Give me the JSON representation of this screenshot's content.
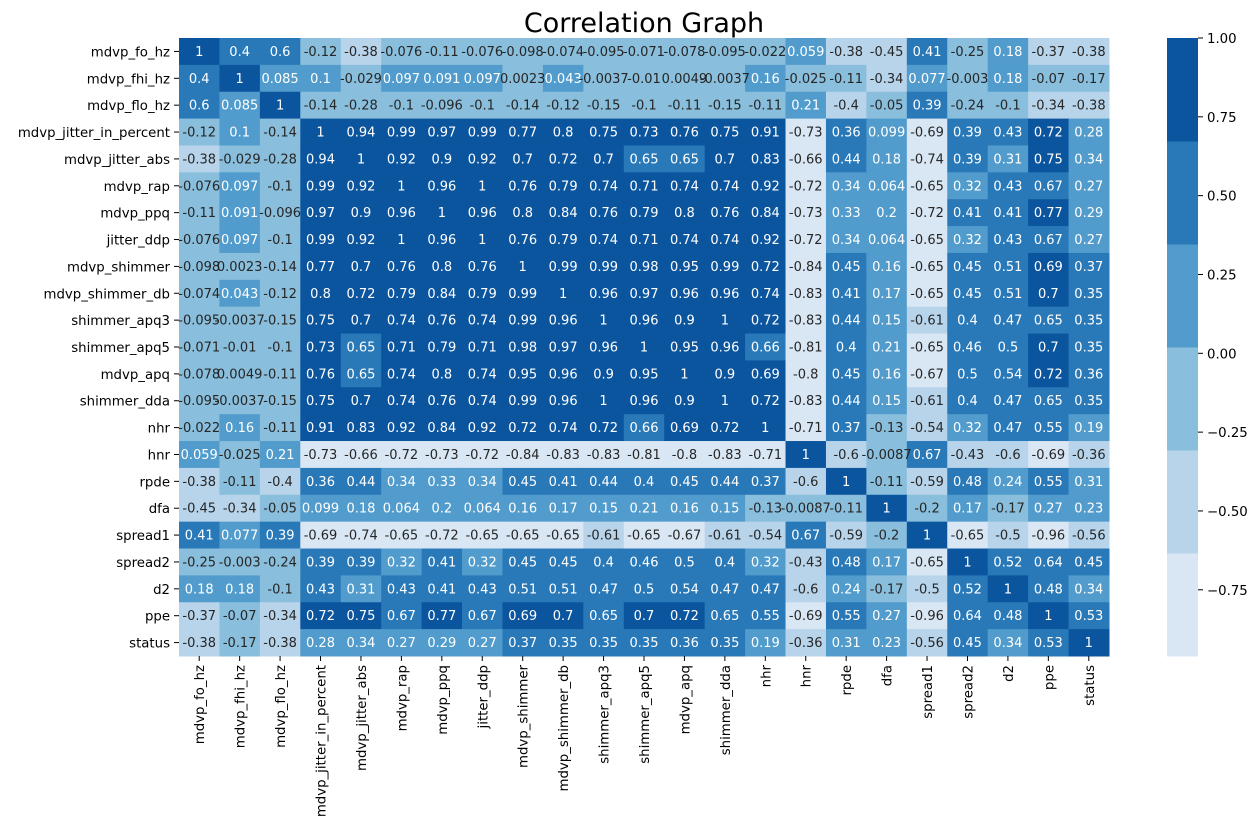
{
  "chart_data": {
    "type": "heatmap",
    "title": "Correlation Graph",
    "labels": [
      "mdvp_fo_hz",
      "mdvp_fhi_hz",
      "mdvp_flo_hz",
      "mdvp_jitter_in_percent",
      "mdvp_jitter_abs",
      "mdvp_rap",
      "mdvp_ppq",
      "jitter_ddp",
      "mdvp_shimmer",
      "mdvp_shimmer_db",
      "shimmer_apq3",
      "shimmer_apq5",
      "mdvp_apq",
      "shimmer_dda",
      "nhr",
      "hnr",
      "rpde",
      "dfa",
      "spread1",
      "spread2",
      "d2",
      "ppe",
      "status"
    ],
    "matrix": [
      [
        1,
        0.4,
        0.6,
        -0.12,
        -0.38,
        -0.076,
        -0.11,
        -0.076,
        -0.098,
        -0.074,
        -0.095,
        -0.071,
        -0.078,
        -0.095,
        -0.022,
        0.059,
        -0.38,
        -0.45,
        0.41,
        -0.25,
        0.18,
        -0.37,
        -0.38
      ],
      [
        0.4,
        1,
        0.085,
        0.1,
        -0.029,
        0.097,
        0.091,
        0.097,
        0.0023,
        0.043,
        -0.0037,
        -0.01,
        0.0049,
        -0.0037,
        0.16,
        -0.025,
        -0.11,
        -0.34,
        0.077,
        -0.003,
        0.18,
        -0.07,
        -0.17
      ],
      [
        0.6,
        0.085,
        1,
        -0.14,
        -0.28,
        -0.1,
        -0.096,
        -0.1,
        -0.14,
        -0.12,
        -0.15,
        -0.1,
        -0.11,
        -0.15,
        -0.11,
        0.21,
        -0.4,
        -0.05,
        0.39,
        -0.24,
        -0.1,
        -0.34,
        -0.38
      ],
      [
        -0.12,
        0.1,
        -0.14,
        1,
        0.94,
        0.99,
        0.97,
        0.99,
        0.77,
        0.8,
        0.75,
        0.73,
        0.76,
        0.75,
        0.91,
        -0.73,
        0.36,
        0.099,
        -0.69,
        0.39,
        0.43,
        0.72,
        0.28
      ],
      [
        -0.38,
        -0.029,
        -0.28,
        0.94,
        1,
        0.92,
        0.9,
        0.92,
        0.7,
        0.72,
        0.7,
        0.65,
        0.65,
        0.7,
        0.83,
        -0.66,
        0.44,
        0.18,
        -0.74,
        0.39,
        0.31,
        0.75,
        0.34
      ],
      [
        -0.076,
        0.097,
        -0.1,
        0.99,
        0.92,
        1,
        0.96,
        1,
        0.76,
        0.79,
        0.74,
        0.71,
        0.74,
        0.74,
        0.92,
        -0.72,
        0.34,
        0.064,
        -0.65,
        0.32,
        0.43,
        0.67,
        0.27
      ],
      [
        -0.11,
        0.091,
        -0.096,
        0.97,
        0.9,
        0.96,
        1,
        0.96,
        0.8,
        0.84,
        0.76,
        0.79,
        0.8,
        0.76,
        0.84,
        -0.73,
        0.33,
        0.2,
        -0.72,
        0.41,
        0.41,
        0.77,
        0.29
      ],
      [
        -0.076,
        0.097,
        -0.1,
        0.99,
        0.92,
        1,
        0.96,
        1,
        0.76,
        0.79,
        0.74,
        0.71,
        0.74,
        0.74,
        0.92,
        -0.72,
        0.34,
        0.064,
        -0.65,
        0.32,
        0.43,
        0.67,
        0.27
      ],
      [
        -0.098,
        0.0023,
        -0.14,
        0.77,
        0.7,
        0.76,
        0.8,
        0.76,
        1,
        0.99,
        0.99,
        0.98,
        0.95,
        0.99,
        0.72,
        -0.84,
        0.45,
        0.16,
        -0.65,
        0.45,
        0.51,
        0.69,
        0.37
      ],
      [
        -0.074,
        0.043,
        -0.12,
        0.8,
        0.72,
        0.79,
        0.84,
        0.79,
        0.99,
        1,
        0.96,
        0.97,
        0.96,
        0.96,
        0.74,
        -0.83,
        0.41,
        0.17,
        -0.65,
        0.45,
        0.51,
        0.7,
        0.35
      ],
      [
        -0.095,
        -0.0037,
        -0.15,
        0.75,
        0.7,
        0.74,
        0.76,
        0.74,
        0.99,
        0.96,
        1,
        0.96,
        0.9,
        1,
        0.72,
        -0.83,
        0.44,
        0.15,
        -0.61,
        0.4,
        0.47,
        0.65,
        0.35
      ],
      [
        -0.071,
        -0.01,
        -0.1,
        0.73,
        0.65,
        0.71,
        0.79,
        0.71,
        0.98,
        0.97,
        0.96,
        1,
        0.95,
        0.96,
        0.66,
        -0.81,
        0.4,
        0.21,
        -0.65,
        0.46,
        0.5,
        0.7,
        0.35
      ],
      [
        -0.078,
        0.0049,
        -0.11,
        0.76,
        0.65,
        0.74,
        0.8,
        0.74,
        0.95,
        0.96,
        0.9,
        0.95,
        1,
        0.9,
        0.69,
        -0.8,
        0.45,
        0.16,
        -0.67,
        0.5,
        0.54,
        0.72,
        0.36
      ],
      [
        -0.095,
        -0.0037,
        -0.15,
        0.75,
        0.7,
        0.74,
        0.76,
        0.74,
        0.99,
        0.96,
        1,
        0.96,
        0.9,
        1,
        0.72,
        -0.83,
        0.44,
        0.15,
        -0.61,
        0.4,
        0.47,
        0.65,
        0.35
      ],
      [
        -0.022,
        0.16,
        -0.11,
        0.91,
        0.83,
        0.92,
        0.84,
        0.92,
        0.72,
        0.74,
        0.72,
        0.66,
        0.69,
        0.72,
        1,
        -0.71,
        0.37,
        -0.13,
        -0.54,
        0.32,
        0.47,
        0.55,
        0.19
      ],
      [
        0.059,
        -0.025,
        0.21,
        -0.73,
        -0.66,
        -0.72,
        -0.73,
        -0.72,
        -0.84,
        -0.83,
        -0.83,
        -0.81,
        -0.8,
        -0.83,
        -0.71,
        1,
        -0.6,
        -0.0087,
        0.67,
        -0.43,
        -0.6,
        -0.69,
        -0.36
      ],
      [
        -0.38,
        -0.11,
        -0.4,
        0.36,
        0.44,
        0.34,
        0.33,
        0.34,
        0.45,
        0.41,
        0.44,
        0.4,
        0.45,
        0.44,
        0.37,
        -0.6,
        1,
        -0.11,
        -0.59,
        0.48,
        0.24,
        0.55,
        0.31
      ],
      [
        -0.45,
        -0.34,
        -0.05,
        0.099,
        0.18,
        0.064,
        0.2,
        0.064,
        0.16,
        0.17,
        0.15,
        0.21,
        0.16,
        0.15,
        -0.13,
        -0.0087,
        -0.11,
        1,
        -0.2,
        0.17,
        -0.17,
        0.27,
        0.23
      ],
      [
        0.41,
        0.077,
        0.39,
        -0.69,
        -0.74,
        -0.65,
        -0.72,
        -0.65,
        -0.65,
        -0.65,
        -0.61,
        -0.65,
        -0.67,
        -0.61,
        -0.54,
        0.67,
        -0.59,
        -0.2,
        1,
        -0.65,
        -0.5,
        -0.96,
        -0.56
      ],
      [
        -0.25,
        -0.003,
        -0.24,
        0.39,
        0.39,
        0.32,
        0.41,
        0.32,
        0.45,
        0.45,
        0.4,
        0.46,
        0.5,
        0.4,
        0.32,
        -0.43,
        0.48,
        0.17,
        -0.65,
        1,
        0.52,
        0.64,
        0.45
      ],
      [
        0.18,
        0.18,
        -0.1,
        0.43,
        0.31,
        0.43,
        0.41,
        0.43,
        0.51,
        0.51,
        0.47,
        0.5,
        0.54,
        0.47,
        0.47,
        -0.6,
        0.24,
        -0.17,
        -0.5,
        0.52,
        1,
        0.48,
        0.34
      ],
      [
        -0.37,
        -0.07,
        -0.34,
        0.72,
        0.75,
        0.67,
        0.77,
        0.67,
        0.69,
        0.7,
        0.65,
        0.7,
        0.72,
        0.65,
        0.55,
        -0.69,
        0.55,
        0.27,
        -0.96,
        0.64,
        0.48,
        1,
        0.53
      ],
      [
        -0.38,
        -0.17,
        -0.38,
        0.28,
        0.34,
        0.27,
        0.29,
        0.27,
        0.37,
        0.35,
        0.35,
        0.35,
        0.36,
        0.35,
        0.19,
        -0.36,
        0.31,
        0.23,
        -0.56,
        0.45,
        0.34,
        0.53,
        1
      ]
    ],
    "colorbar": {
      "vmin": -0.96,
      "vmax": 1,
      "ticks": [
        -0.75,
        -0.5,
        -0.25,
        0,
        0.25,
        0.5,
        0.75,
        1
      ],
      "tick_labels": [
        "−0.75",
        "−0.50",
        "−0.25",
        "0.00",
        "0.25",
        "0.50",
        "0.75",
        "1.00"
      ],
      "colors": [
        "#d9e7f5",
        "#b8d4ea",
        "#89bedc",
        "#519ccc",
        "#2979b9",
        "#0b559f"
      ]
    },
    "annotations": true,
    "grid": false
  }
}
